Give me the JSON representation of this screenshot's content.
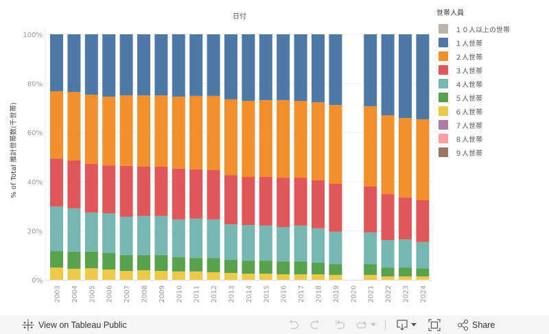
{
  "chart_data": {
    "type": "bar",
    "stacked": true,
    "normalized": true,
    "title": "日付",
    "xlabel": "",
    "ylabel": "% of Total 推計世帯数(千世帯)",
    "ylim": [
      0,
      100
    ],
    "yticks": [
      "0%",
      "20%",
      "40%",
      "60%",
      "80%",
      "100%"
    ],
    "ytick_values": [
      0,
      20,
      40,
      60,
      80,
      100
    ],
    "grid": true,
    "legend_title": "世帯人員",
    "legend_position": "right",
    "categories": [
      "2003",
      "2004",
      "2005",
      "2006",
      "2007",
      "2008",
      "2009",
      "2010",
      "2011",
      "2012",
      "2013",
      "2014",
      "2015",
      "2016",
      "2017",
      "2018",
      "2019",
      "2020",
      "2021",
      "2022",
      "2023",
      "2024"
    ],
    "legend": [
      {
        "name": "１０人以上の世帯",
        "color": "#bab0ac"
      },
      {
        "name": "１人世帯",
        "color": "#4e79a7"
      },
      {
        "name": "２人世帯",
        "color": "#f28e2b"
      },
      {
        "name": "３人世帯",
        "color": "#e15759"
      },
      {
        "name": "４人世帯",
        "color": "#76b7b2"
      },
      {
        "name": "５人世帯",
        "color": "#59a14f"
      },
      {
        "name": "６人世帯",
        "color": "#edc948"
      },
      {
        "name": "７人世帯",
        "color": "#b07aa1"
      },
      {
        "name": "８人世帯",
        "color": "#ff9da7"
      },
      {
        "name": "９人世帯",
        "color": "#9c755f"
      }
    ],
    "stack_order_bottom_to_top": [
      "６人世帯",
      "５人世帯",
      "４人世帯",
      "３人世帯",
      "２人世帯",
      "１人世帯"
    ],
    "series": [
      {
        "name": "６人世帯",
        "color": "#edc948",
        "values": [
          5.0,
          4.5,
          4.7,
          4.2,
          3.6,
          3.9,
          3.6,
          3.4,
          3.4,
          3.1,
          2.8,
          2.5,
          2.5,
          2.2,
          2.2,
          2.2,
          2.0,
          null,
          2.0,
          1.4,
          1.4,
          1.4
        ]
      },
      {
        "name": "５人世帯",
        "color": "#59a14f",
        "values": [
          6.7,
          7.0,
          6.8,
          6.7,
          6.5,
          6.2,
          6.5,
          5.8,
          5.5,
          5.8,
          5.3,
          5.3,
          5.3,
          5.3,
          5.3,
          4.8,
          4.4,
          null,
          4.4,
          3.6,
          3.6,
          3.3
        ]
      },
      {
        "name": "４人世帯",
        "color": "#76b7b2",
        "values": [
          18.2,
          17.6,
          15.9,
          16.2,
          15.6,
          15.9,
          15.9,
          15.4,
          16.0,
          15.7,
          14.5,
          14.5,
          14.3,
          14.0,
          14.6,
          14.0,
          13.2,
          null,
          12.9,
          11.2,
          11.5,
          10.7
        ]
      },
      {
        "name": "３人世帯",
        "color": "#e15759",
        "values": [
          19.5,
          19.5,
          19.8,
          19.5,
          20.7,
          20.1,
          20.1,
          20.7,
          20.1,
          20.1,
          20.1,
          19.6,
          19.8,
          20.1,
          19.5,
          19.5,
          19.5,
          null,
          18.7,
          18.7,
          17.0,
          17.0
        ]
      },
      {
        "name": "２人世帯",
        "color": "#f28e2b",
        "values": [
          27.4,
          27.9,
          28.2,
          28.0,
          28.7,
          29.0,
          29.0,
          29.3,
          29.9,
          30.2,
          30.8,
          31.0,
          31.3,
          31.6,
          31.3,
          31.8,
          32.1,
          null,
          32.7,
          32.1,
          32.4,
          33.0
        ]
      },
      {
        "name": "１人世帯",
        "color": "#4e79a7",
        "values": [
          23.2,
          23.5,
          24.6,
          25.4,
          24.9,
          24.9,
          24.9,
          25.4,
          25.1,
          25.1,
          26.5,
          27.1,
          26.8,
          26.8,
          27.1,
          27.7,
          28.8,
          null,
          29.3,
          33.0,
          34.1,
          34.6
        ]
      }
    ]
  },
  "footer": {
    "view_label": "View on Tableau Public",
    "share_label": "Share"
  }
}
